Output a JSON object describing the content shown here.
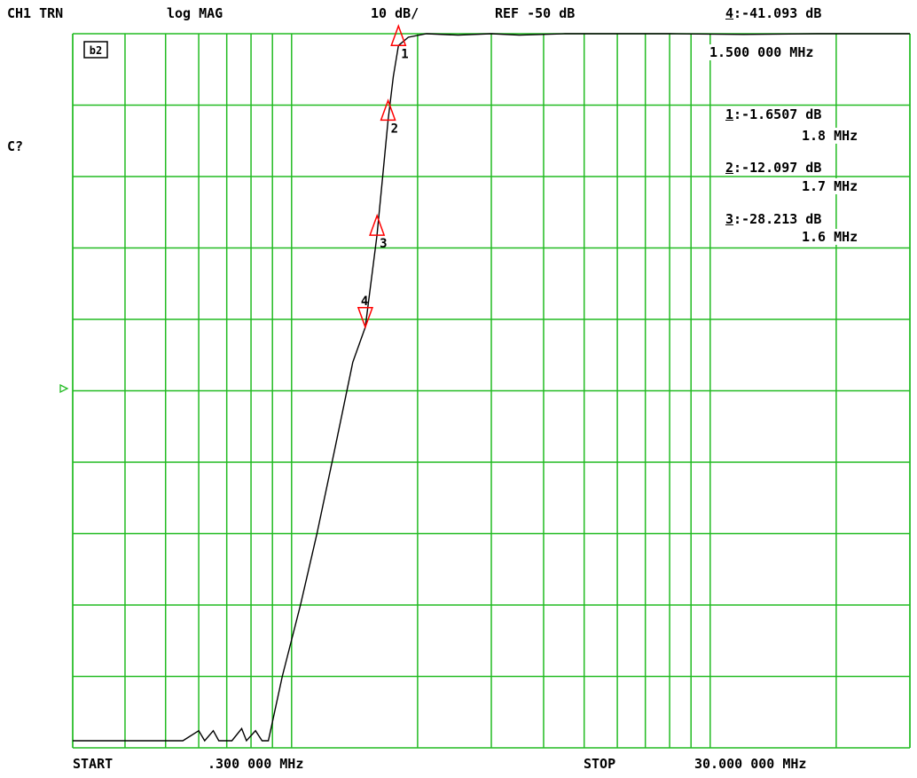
{
  "header": {
    "channel": "CH1 TRN",
    "format": "log MAG",
    "scale": "10 dB/",
    "reference": "REF -50 dB",
    "active_marker_num": "4",
    "active_marker_value": ":-41.093 dB"
  },
  "side": {
    "cal_label": "C?",
    "display_icon": "b2",
    "active_marker_freq": "1.500 000 MHz"
  },
  "marker_readouts": [
    {
      "num": "1",
      "value": ":-1.6507 dB",
      "freq": "1.8 MHz"
    },
    {
      "num": "2",
      "value": ":-12.097 dB",
      "freq": "1.7 MHz"
    },
    {
      "num": "3",
      "value": ":-28.213 dB",
      "freq": "1.6 MHz"
    }
  ],
  "footer": {
    "start_label": "START",
    "start_value": ".300 000 MHz",
    "stop_label": "STOP",
    "stop_value": "30.000 000 MHz"
  },
  "colors": {
    "grid": "#22bb22",
    "trace": "#000000",
    "marker": "#ff0000",
    "ref_arrow": "#22bb22"
  },
  "chart_data": {
    "type": "line",
    "x_scale": "log",
    "x_range_mhz": [
      0.3,
      30
    ],
    "y_range_db": [
      -100,
      0
    ],
    "y_per_division_db": 10,
    "reference_db": -50,
    "grid": true,
    "series": [
      {
        "points": [
          [
            0.3,
            -99
          ],
          [
            0.55,
            -99
          ],
          [
            0.6,
            -97.6
          ],
          [
            0.62,
            -99
          ],
          [
            0.65,
            -97.6
          ],
          [
            0.67,
            -99
          ],
          [
            0.72,
            -99
          ],
          [
            0.76,
            -97.3
          ],
          [
            0.78,
            -99
          ],
          [
            0.82,
            -97.6
          ],
          [
            0.85,
            -99
          ],
          [
            0.88,
            -99
          ],
          [
            0.95,
            -90
          ],
          [
            1.05,
            -80
          ],
          [
            1.15,
            -70
          ],
          [
            1.27,
            -58
          ],
          [
            1.4,
            -46
          ],
          [
            1.5,
            -41.093
          ],
          [
            1.6,
            -28.213
          ],
          [
            1.65,
            -20
          ],
          [
            1.7,
            -12.097
          ],
          [
            1.75,
            -6
          ],
          [
            1.8,
            -1.6507
          ],
          [
            1.9,
            -0.5
          ],
          [
            2.1,
            0
          ],
          [
            2.5,
            -0.2
          ],
          [
            3.0,
            0
          ],
          [
            3.5,
            -0.2
          ],
          [
            4.5,
            0
          ],
          [
            6.0,
            0
          ],
          [
            8.0,
            0
          ],
          [
            12.0,
            -0.1
          ],
          [
            18.0,
            0
          ],
          [
            30.0,
            0
          ]
        ]
      }
    ],
    "markers": [
      {
        "label": "1",
        "freq_mhz": 1.8,
        "db": -1.6507,
        "orientation": "up"
      },
      {
        "label": "2",
        "freq_mhz": 1.7,
        "db": -12.097,
        "orientation": "up"
      },
      {
        "label": "3",
        "freq_mhz": 1.6,
        "db": -28.213,
        "orientation": "up"
      },
      {
        "label": "4",
        "freq_mhz": 1.5,
        "db": -41.093,
        "orientation": "down"
      }
    ]
  }
}
